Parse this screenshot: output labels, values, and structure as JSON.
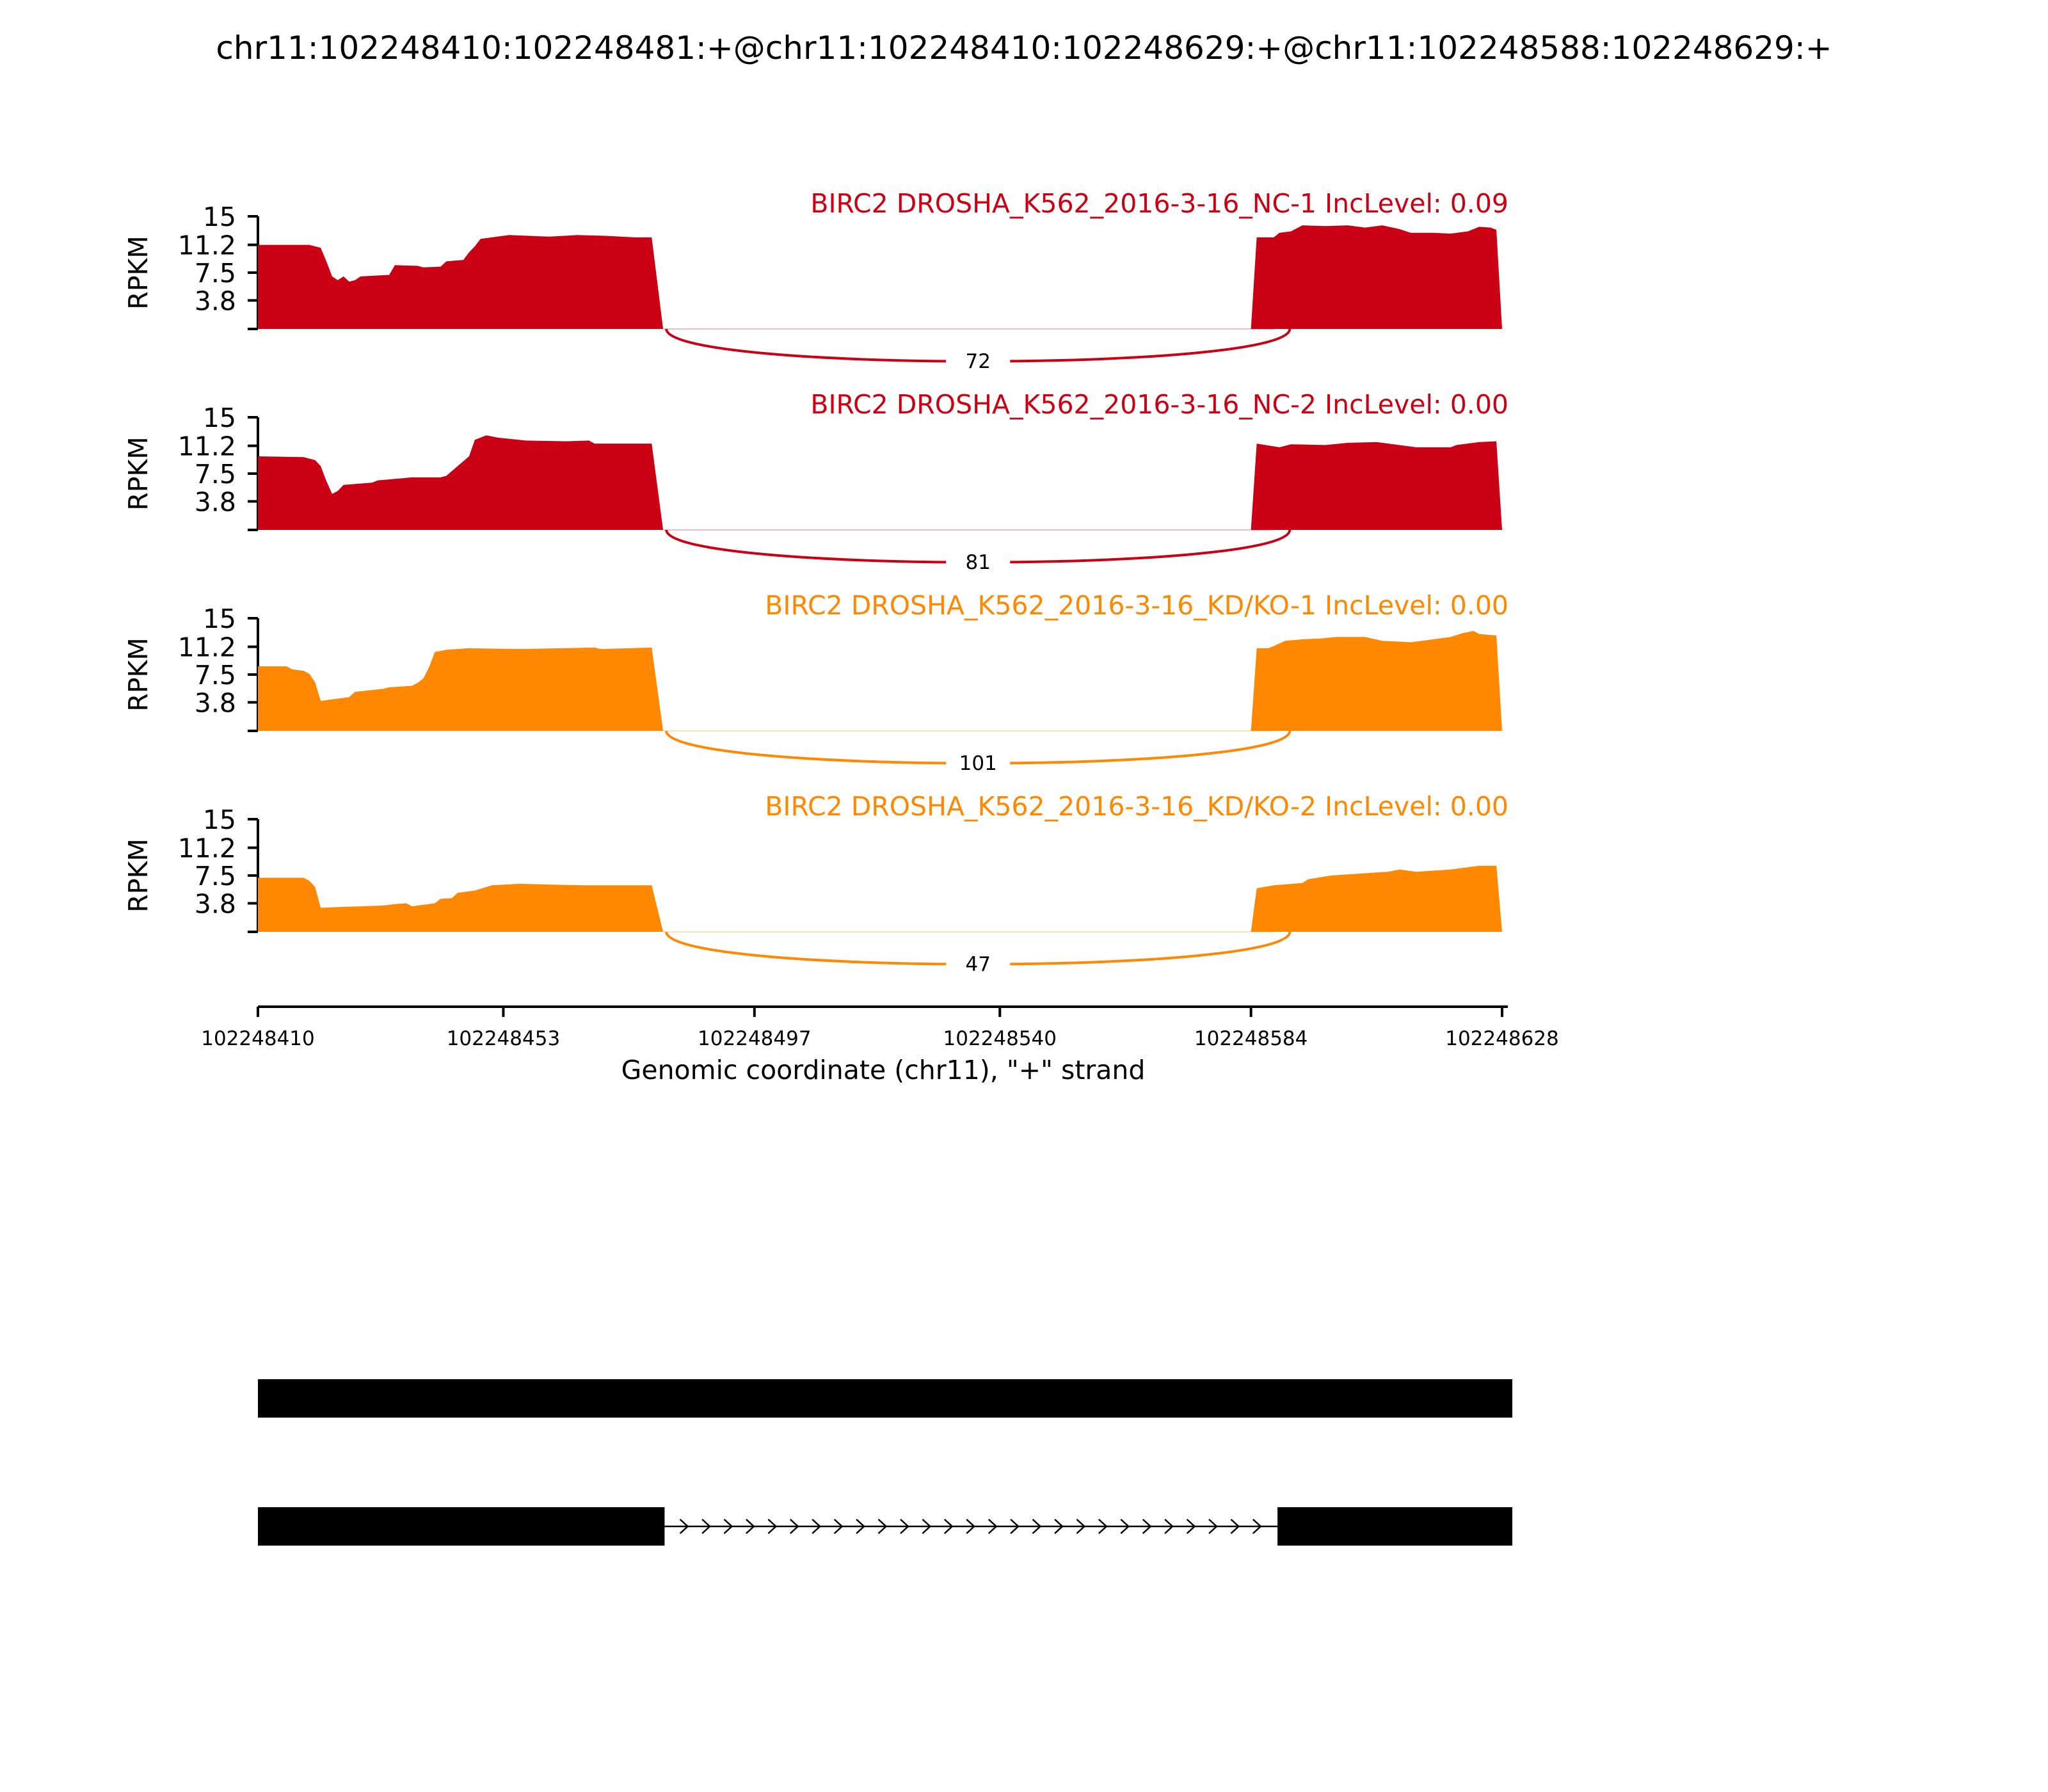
{
  "title": "chr11:102248410:102248481:+@chr11:102248410:102248629:+@chr11:102248588:102248629:+",
  "colors": {
    "nc": "#cc0014",
    "kd": "#ff8800",
    "axis": "#000000",
    "gene": "#000000"
  },
  "chart_data": {
    "type": "area",
    "title": "chr11:102248410:102248481:+@chr11:102248410:102248629:+@chr11:102248588:102248629:+",
    "xlabel": "Genomic coordinate (chr11), \"+\" strand",
    "ylabel": "RPKM",
    "xlim": [
      102248410,
      102248628
    ],
    "ylim": [
      0,
      15
    ],
    "xticks": [
      "102248410",
      "102248453",
      "102248497",
      "102248540",
      "102248584",
      "102248628"
    ],
    "yticks": [
      "15",
      "11.2",
      "7.5",
      "3.8"
    ],
    "grid": false,
    "exons": [
      [
        102248410,
        102248481
      ],
      [
        102248588,
        102248629
      ]
    ],
    "junction_span": [
      102248481,
      102248588
    ],
    "series": [
      {
        "label": "BIRC2 DROSHA_K562_2016-3-16_NC-1 IncLevel: 0.09",
        "group": "nc",
        "junction_count": "72",
        "exon1": [
          [
            102248410,
            11.2
          ],
          [
            102248419,
            11.2
          ],
          [
            102248420,
            11.0
          ],
          [
            102248421,
            10.8
          ],
          [
            102248422,
            9.0
          ],
          [
            102248423,
            7.0
          ],
          [
            102248424,
            6.5
          ],
          [
            102248425,
            7.0
          ],
          [
            102248426,
            6.3
          ],
          [
            102248427,
            6.5
          ],
          [
            102248428,
            7.0
          ],
          [
            102248433,
            7.2
          ],
          [
            102248434,
            8.5
          ],
          [
            102248438,
            8.4
          ],
          [
            102248439,
            8.2
          ],
          [
            102248442,
            8.3
          ],
          [
            102248443,
            9.0
          ],
          [
            102248446,
            9.2
          ],
          [
            102248447,
            10.2
          ],
          [
            102248448,
            11.0
          ],
          [
            102248449,
            12.0
          ],
          [
            102248451,
            12.2
          ],
          [
            102248454,
            12.5
          ],
          [
            102248461,
            12.3
          ],
          [
            102248466,
            12.5
          ],
          [
            102248471,
            12.4
          ],
          [
            102248476,
            12.2
          ],
          [
            102248479,
            12.2
          ]
        ],
        "exon2": [
          [
            102248585,
            12.2
          ],
          [
            102248588,
            12.2
          ],
          [
            102248589,
            12.8
          ],
          [
            102248591,
            13.0
          ],
          [
            102248593,
            13.8
          ],
          [
            102248597,
            13.7
          ],
          [
            102248601,
            13.8
          ],
          [
            102248604,
            13.5
          ],
          [
            102248607,
            13.8
          ],
          [
            102248610,
            13.3
          ],
          [
            102248612,
            12.8
          ],
          [
            102248616,
            12.8
          ],
          [
            102248619,
            12.7
          ],
          [
            102248622,
            13.0
          ],
          [
            102248624,
            13.6
          ],
          [
            102248626,
            13.5
          ],
          [
            102248627,
            13.2
          ]
        ]
      },
      {
        "label": "BIRC2 DROSHA_K562_2016-3-16_NC-2 IncLevel: 0.00",
        "group": "nc",
        "junction_count": "81",
        "exon1": [
          [
            102248410,
            9.8
          ],
          [
            102248418,
            9.7
          ],
          [
            102248420,
            9.3
          ],
          [
            102248421,
            8.5
          ],
          [
            102248422,
            6.5
          ],
          [
            102248423,
            4.8
          ],
          [
            102248424,
            5.2
          ],
          [
            102248425,
            6.0
          ],
          [
            102248430,
            6.3
          ],
          [
            102248431,
            6.6
          ],
          [
            102248434,
            6.8
          ],
          [
            102248437,
            7.0
          ],
          [
            102248442,
            7.0
          ],
          [
            102248443,
            7.2
          ],
          [
            102248445,
            8.5
          ],
          [
            102248447,
            9.8
          ],
          [
            102248448,
            12.0
          ],
          [
            102248450,
            12.6
          ],
          [
            102248452,
            12.3
          ],
          [
            102248457,
            11.9
          ],
          [
            102248464,
            11.8
          ],
          [
            102248468,
            11.9
          ],
          [
            102248469,
            11.5
          ],
          [
            102248479,
            11.5
          ]
        ],
        "exon2": [
          [
            102248585,
            11.5
          ],
          [
            102248589,
            11.0
          ],
          [
            102248591,
            11.4
          ],
          [
            102248597,
            11.3
          ],
          [
            102248601,
            11.6
          ],
          [
            102248606,
            11.7
          ],
          [
            102248609,
            11.4
          ],
          [
            102248613,
            11.0
          ],
          [
            102248619,
            11.0
          ],
          [
            102248620,
            11.3
          ],
          [
            102248624,
            11.7
          ],
          [
            102248627,
            11.8
          ]
        ]
      },
      {
        "label": "BIRC2 DROSHA_K562_2016-3-16_KD/KO-1 IncLevel: 0.00",
        "group": "kd",
        "junction_count": "101",
        "exon1": [
          [
            102248410,
            8.6
          ],
          [
            102248415,
            8.6
          ],
          [
            102248416,
            8.2
          ],
          [
            102248418,
            8.0
          ],
          [
            102248419,
            7.6
          ],
          [
            102248420,
            6.5
          ],
          [
            102248421,
            4.0
          ],
          [
            102248422,
            4.1
          ],
          [
            102248426,
            4.5
          ],
          [
            102248427,
            5.2
          ],
          [
            102248432,
            5.6
          ],
          [
            102248433,
            5.8
          ],
          [
            102248437,
            6.0
          ],
          [
            102248438,
            6.4
          ],
          [
            102248439,
            7.0
          ],
          [
            102248440,
            8.5
          ],
          [
            102248441,
            10.5
          ],
          [
            102248443,
            10.8
          ],
          [
            102248447,
            11.0
          ],
          [
            102248456,
            10.9
          ],
          [
            102248463,
            11.0
          ],
          [
            102248469,
            11.1
          ],
          [
            102248470,
            10.9
          ],
          [
            102248479,
            11.1
          ]
        ],
        "exon2": [
          [
            102248585,
            11.0
          ],
          [
            102248587,
            11.0
          ],
          [
            102248588,
            11.3
          ],
          [
            102248590,
            12.0
          ],
          [
            102248593,
            12.2
          ],
          [
            102248596,
            12.3
          ],
          [
            102248599,
            12.5
          ],
          [
            102248604,
            12.5
          ],
          [
            102248607,
            12.0
          ],
          [
            102248612,
            11.8
          ],
          [
            102248614,
            12.0
          ],
          [
            102248619,
            12.5
          ],
          [
            102248621,
            13.0
          ],
          [
            102248623,
            13.3
          ],
          [
            102248624,
            12.9
          ],
          [
            102248627,
            12.7
          ]
        ]
      },
      {
        "label": "BIRC2 DROSHA_K562_2016-3-16_KD/KO-2 IncLevel: 0.00",
        "group": "kd",
        "junction_count": "47",
        "exon1": [
          [
            102248410,
            7.2
          ],
          [
            102248418,
            7.2
          ],
          [
            102248419,
            6.8
          ],
          [
            102248420,
            6.0
          ],
          [
            102248421,
            3.2
          ],
          [
            102248424,
            3.3
          ],
          [
            102248428,
            3.4
          ],
          [
            102248432,
            3.5
          ],
          [
            102248434,
            3.7
          ],
          [
            102248436,
            3.8
          ],
          [
            102248437,
            3.4
          ],
          [
            102248441,
            3.8
          ],
          [
            102248442,
            4.4
          ],
          [
            102248444,
            4.5
          ],
          [
            102248445,
            5.2
          ],
          [
            102248448,
            5.5
          ],
          [
            102248451,
            6.2
          ],
          [
            102248456,
            6.4
          ],
          [
            102248461,
            6.3
          ],
          [
            102248467,
            6.2
          ],
          [
            102248479,
            6.2
          ]
        ],
        "exon2": [
          [
            102248585,
            5.8
          ],
          [
            102248588,
            6.2
          ],
          [
            102248593,
            6.5
          ],
          [
            102248594,
            7.0
          ],
          [
            102248598,
            7.5
          ],
          [
            102248604,
            7.8
          ],
          [
            102248608,
            8.0
          ],
          [
            102248610,
            8.3
          ],
          [
            102248613,
            8.0
          ],
          [
            102248619,
            8.3
          ],
          [
            102248623,
            8.7
          ],
          [
            102248624,
            8.8
          ],
          [
            102248627,
            8.8
          ]
        ]
      }
    ],
    "gene_models": [
      {
        "exons": [
          [
            102248410,
            102248629
          ]
        ],
        "introns": []
      },
      {
        "exons": [
          [
            102248410,
            102248481
          ],
          [
            102248588,
            102248629
          ]
        ],
        "introns": [
          [
            102248481,
            102248588
          ]
        ]
      }
    ]
  }
}
